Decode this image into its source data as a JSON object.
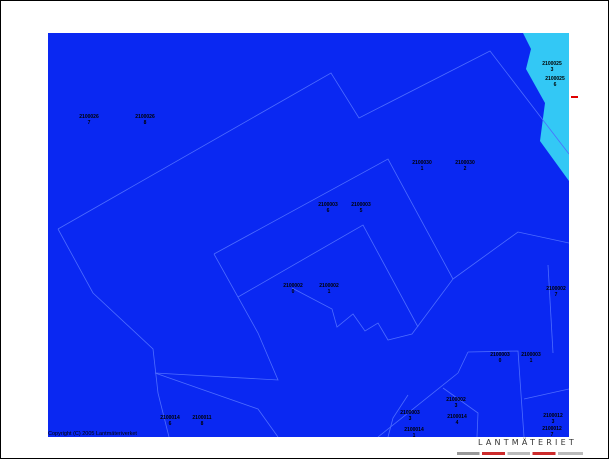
{
  "map": {
    "land_color": "#0a28f2",
    "water_color": "#33c8f5",
    "boundary_color": "#4d6cff",
    "parcels": [
      {
        "line1": "2100026",
        "line2": "7"
      },
      {
        "line1": "2100026",
        "line2": "8"
      },
      {
        "line1": "2100025",
        "line2": "3"
      },
      {
        "line1": "2100025",
        "line2": "6"
      },
      {
        "line1": "2100030",
        "line2": "1"
      },
      {
        "line1": "2100030",
        "line2": "2"
      },
      {
        "line1": "2100003",
        "line2": "6"
      },
      {
        "line1": "2100003",
        "line2": "5"
      },
      {
        "line1": "2100002",
        "line2": "0"
      },
      {
        "line1": "2100002",
        "line2": "1"
      },
      {
        "line1": "2100002",
        "line2": "7"
      },
      {
        "line1": "2100003",
        "line2": "0"
      },
      {
        "line1": "2100003",
        "line2": "1"
      },
      {
        "line1": "2100002",
        "line2": "3"
      },
      {
        "line1": "2100003",
        "line2": "3"
      },
      {
        "line1": "2100014",
        "line2": "4"
      },
      {
        "line1": "2100014",
        "line2": "1"
      },
      {
        "line1": "2100014",
        "line2": "6"
      },
      {
        "line1": "2100011",
        "line2": "8"
      },
      {
        "line1": "2100012",
        "line2": "3"
      },
      {
        "line1": "2100012",
        "line2": "7"
      }
    ]
  },
  "copyright": "Copyright (C) 2005 Lantmäteriverket",
  "logo_text": "LANTMÄTERIET"
}
